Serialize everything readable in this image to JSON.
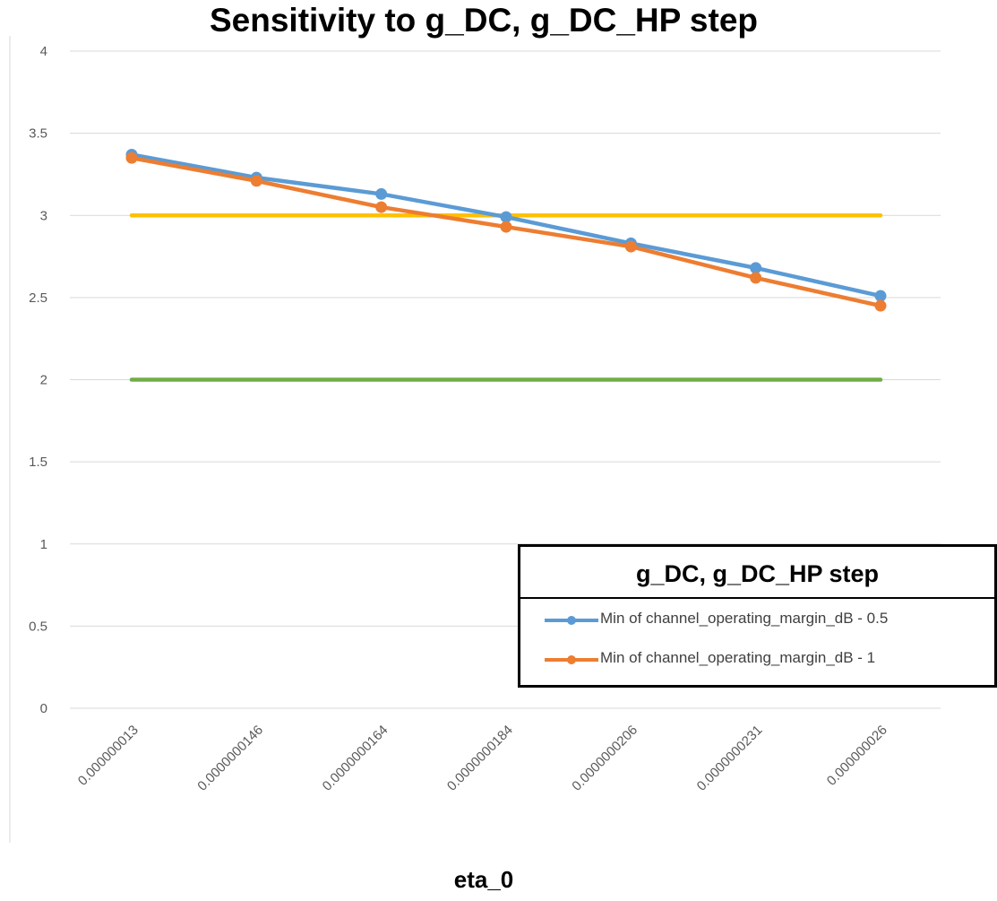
{
  "chart_data": {
    "type": "line",
    "title": "Sensitivity to g_DC, g_DC_HP step",
    "xlabel": "eta_0",
    "ylabel": "",
    "categories": [
      "0.000000013",
      "0.0000000146",
      "0.0000000164",
      "0.0000000184",
      "0.0000000206",
      "0.0000000231",
      "0.000000026"
    ],
    "ylim": [
      0,
      4
    ],
    "yticks": [
      "0",
      "0.5",
      "1",
      "1.5",
      "2",
      "2.5",
      "3",
      "3.5",
      "4"
    ],
    "grid": true,
    "legend_title": "g_DC, g_DC_HP step",
    "legend_position": "bottom-right",
    "series": [
      {
        "name": "Min of channel_operating_margin_dB - 0.5",
        "color": "#5B9BD5",
        "markers": true,
        "values": [
          3.37,
          3.23,
          3.13,
          2.99,
          2.83,
          2.68,
          2.51
        ]
      },
      {
        "name": "Min of channel_operating_margin_dB - 1",
        "color": "#ED7D31",
        "markers": true,
        "values": [
          3.35,
          3.21,
          3.05,
          2.93,
          2.81,
          2.62,
          2.45
        ]
      },
      {
        "color": "#FFC000",
        "markers": false,
        "values": [
          3,
          3,
          3,
          3,
          3,
          3,
          3
        ]
      },
      {
        "color": "#70AD47",
        "markers": false,
        "values": [
          2,
          2,
          2,
          2,
          2,
          2,
          2
        ]
      }
    ]
  }
}
